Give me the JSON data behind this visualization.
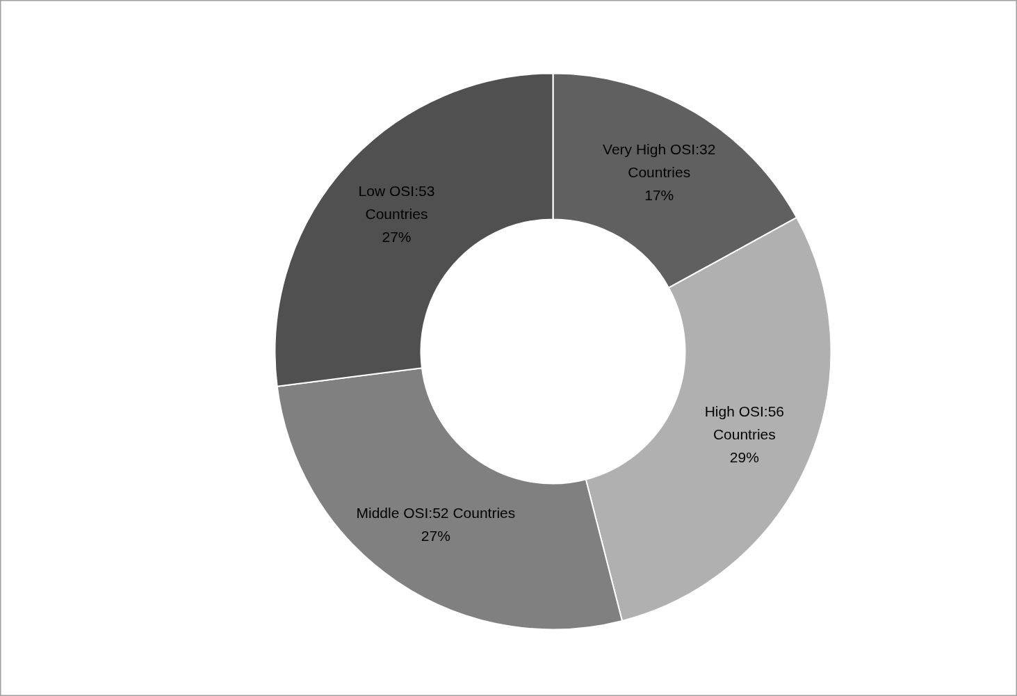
{
  "chart_data": {
    "type": "donut",
    "categories": [
      "Very High OSI:32 Countries",
      "High OSI:56 Countries",
      "Middle OSI:52 Countries",
      "Low OSI:53 Countries"
    ],
    "values": [
      17,
      29,
      27,
      27
    ],
    "value_labels": [
      "17%",
      "29%",
      "27%",
      "27%"
    ],
    "colors": [
      "#606060",
      "#b0b0b0",
      "#808080",
      "#505050"
    ]
  }
}
